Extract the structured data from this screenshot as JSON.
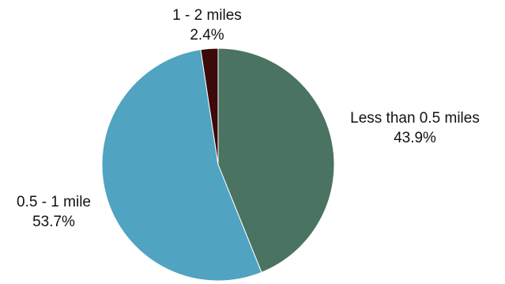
{
  "chart_data": {
    "type": "pie",
    "slices": [
      {
        "label": "Less than 0.5 miles",
        "value": 43.9,
        "value_label": "43.9%",
        "color": "#4a7361"
      },
      {
        "label": "0.5 - 1 mile",
        "value": 53.7,
        "value_label": "53.7%",
        "color": "#50a3c1"
      },
      {
        "label": "1 - 2 miles",
        "value": 2.4,
        "value_label": "2.4%",
        "color": "#3c0a0b"
      }
    ],
    "start_angle": "12 o'clock",
    "direction": "clockwise"
  }
}
